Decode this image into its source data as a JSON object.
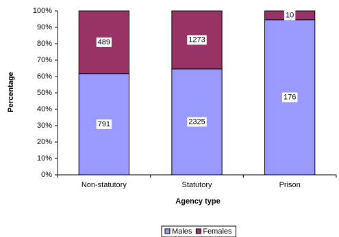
{
  "chart_data": {
    "type": "bar",
    "stacked": "percent",
    "x_label": "Agency type",
    "y_label": "Percentage",
    "categories": [
      "Non-statutory",
      "Statutory",
      "Prison"
    ],
    "series": [
      {
        "name": "Males",
        "color": "#9999ff",
        "values": [
          791,
          2325,
          176
        ]
      },
      {
        "name": "Females",
        "color": "#993366",
        "values": [
          489,
          1273,
          10
        ]
      }
    ],
    "ylim": [
      0,
      100
    ],
    "yticks": [
      {
        "value": 0,
        "label": "0%"
      },
      {
        "value": 10,
        "label": "10%"
      },
      {
        "value": 20,
        "label": "20%"
      },
      {
        "value": 30,
        "label": "30%"
      },
      {
        "value": 40,
        "label": "40%"
      },
      {
        "value": 50,
        "label": "50%"
      },
      {
        "value": 60,
        "label": "60%"
      },
      {
        "value": 70,
        "label": "70%"
      },
      {
        "value": 80,
        "label": "80%"
      },
      {
        "value": 90,
        "label": "90%"
      },
      {
        "value": 100,
        "label": "100%"
      }
    ],
    "legend": "bottom"
  }
}
